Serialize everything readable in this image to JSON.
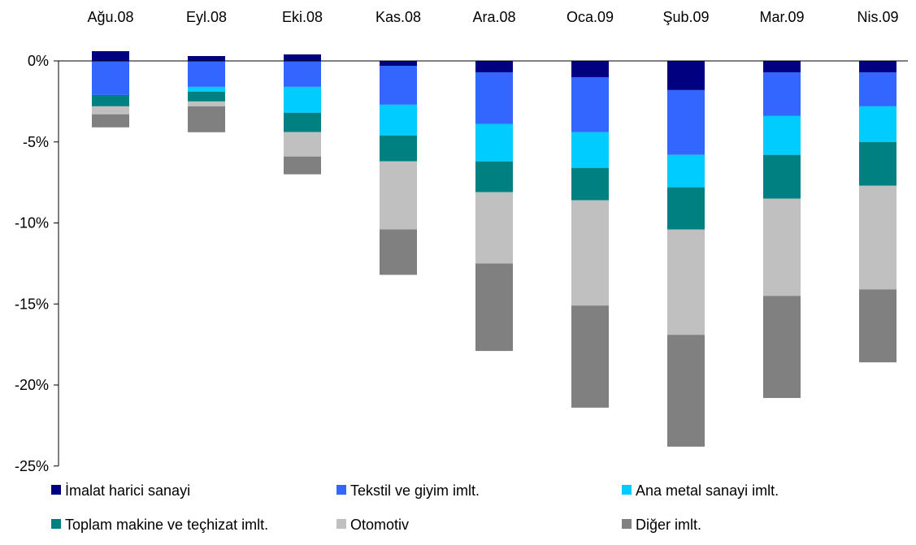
{
  "chart_data": {
    "type": "bar",
    "stacked": true,
    "categories": [
      "Ağu.08",
      "Eyl.08",
      "Eki.08",
      "Kas.08",
      "Ara.08",
      "Oca.09",
      "Şub.09",
      "Mar.09",
      "Nis.09"
    ],
    "ylim": [
      -25,
      0
    ],
    "yticks": [
      0,
      -5,
      -10,
      -15,
      -20,
      -25
    ],
    "ytick_labels": [
      "0%",
      "-5%",
      "-10%",
      "-15%",
      "-20%",
      "-25%"
    ],
    "category_axis_position": "top",
    "grid": false,
    "legend_position": "bottom",
    "series": [
      {
        "name": "İmalat harici sanayi",
        "color": "#000080",
        "values": [
          0.6,
          0.3,
          0.4,
          -0.3,
          -0.7,
          -1.0,
          -1.8,
          -0.7,
          -0.7
        ]
      },
      {
        "name": "Tekstil ve giyim imlt.",
        "color": "#3366FF",
        "values": [
          -2.1,
          -1.6,
          -1.6,
          -2.4,
          -3.2,
          -3.4,
          -4.0,
          -2.7,
          -2.1
        ]
      },
      {
        "name": "Ana metal sanayi imlt.",
        "color": "#00CCFF",
        "values": [
          0.0,
          -0.3,
          -1.6,
          -1.9,
          -2.3,
          -2.2,
          -2.0,
          -2.4,
          -2.2
        ]
      },
      {
        "name": "Toplam makine ve teçhizat imlt.",
        "color": "#008080",
        "values": [
          -0.7,
          -0.6,
          -1.2,
          -1.6,
          -1.9,
          -2.0,
          -2.6,
          -2.7,
          -2.7
        ]
      },
      {
        "name": "Otomotiv",
        "color": "#C0C0C0",
        "values": [
          -0.5,
          -0.3,
          -1.5,
          -4.2,
          -4.4,
          -6.5,
          -6.5,
          -6.0,
          -6.4
        ]
      },
      {
        "name": "Diğer imlt.",
        "color": "#808080",
        "values": [
          -0.8,
          -1.6,
          -1.1,
          -2.8,
          -5.4,
          -6.3,
          -6.9,
          -6.3,
          -4.5
        ]
      }
    ]
  }
}
